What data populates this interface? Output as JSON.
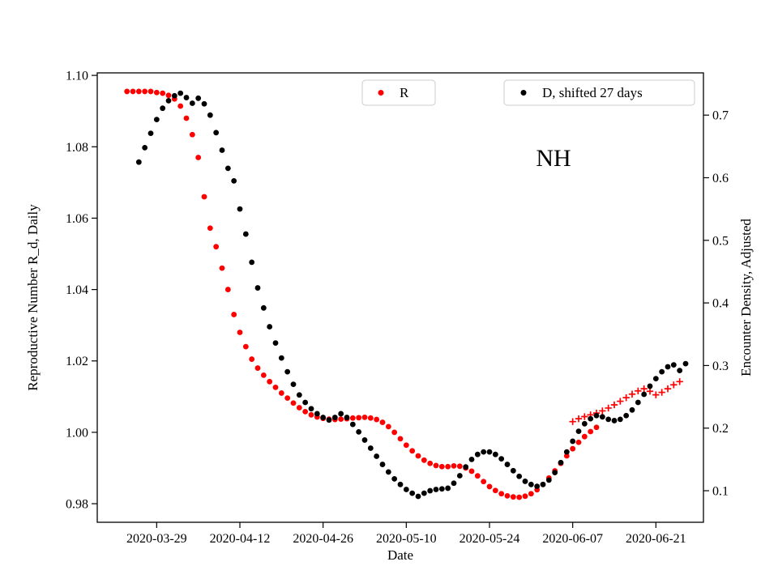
{
  "chart_data": {
    "type": "scatter",
    "title": "NH",
    "xlabel": "Date",
    "grid": false,
    "x_axis": {
      "range": [
        "2020-03-19",
        "2020-06-29"
      ],
      "tick_labels": [
        "2020-03-29",
        "2020-04-12",
        "2020-04-26",
        "2020-05-10",
        "2020-05-24",
        "2020-06-07",
        "2020-06-21"
      ]
    },
    "left_axis": {
      "label": "Reproductive Number R_d, Daily",
      "color": "#ff0000",
      "range": [
        0.9748,
        1.1007
      ],
      "tick_values": [
        0.98,
        1.0,
        1.02,
        1.04,
        1.06,
        1.08,
        1.1
      ],
      "tick_labels": [
        "0.98",
        "1.00",
        "1.02",
        "1.04",
        "1.06",
        "1.08",
        "1.10"
      ]
    },
    "right_axis": {
      "label": "Encounter Density, Adjusted",
      "color": "#000000",
      "range": [
        0.0496,
        0.7675
      ],
      "tick_values": [
        0.1,
        0.2,
        0.3,
        0.4,
        0.5,
        0.6,
        0.7
      ],
      "tick_labels": [
        "0.1",
        "0.2",
        "0.3",
        "0.4",
        "0.5",
        "0.6",
        "0.7"
      ]
    },
    "legend": [
      {
        "label": "R",
        "marker": "circle",
        "color": "#ff0000"
      },
      {
        "label": "D, shifted 27 days",
        "marker": "circle",
        "color": "#000000"
      }
    ],
    "series": [
      {
        "name": "R",
        "axis": "left",
        "marker": "circle",
        "color": "#ff0000",
        "start_date": "2020-03-24",
        "cadence_days": 1,
        "values": [
          1.0955,
          1.0955,
          1.0955,
          1.0955,
          1.0955,
          1.0952,
          1.095,
          1.0944,
          1.0934,
          1.0914,
          1.088,
          1.0834,
          1.077,
          1.066,
          1.0572,
          1.052,
          1.046,
          1.04,
          1.033,
          1.028,
          1.024,
          1.0205,
          1.018,
          1.016,
          1.0142,
          1.0126,
          1.011,
          1.0096,
          1.0082,
          1.0069,
          1.0058,
          1.0049,
          1.0043,
          1.0039,
          1.0037,
          1.0036,
          1.0037,
          1.0038,
          1.004,
          1.0041,
          1.0042,
          1.004,
          1.0036,
          1.0028,
          1.0016,
          1.0,
          0.9982,
          0.9964,
          0.9948,
          0.9934,
          0.9922,
          0.9913,
          0.9907,
          0.9904,
          0.9904,
          0.9906,
          0.9905,
          0.99,
          0.9891,
          0.9878,
          0.9862,
          0.9848,
          0.9837,
          0.9828,
          0.9822,
          0.9819,
          0.9818,
          0.9821,
          0.9828,
          0.9839,
          0.9854,
          0.9872,
          0.9892,
          0.9913,
          0.9934,
          0.9954,
          0.9972,
          0.9988,
          1.0002,
          1.0014
        ]
      },
      {
        "name": "R",
        "axis": "left",
        "marker": "plus",
        "color": "#ff0000",
        "start_date": "2020-06-07",
        "cadence_days": 1,
        "values": [
          1.003,
          1.0038,
          1.0044,
          1.0049,
          1.0054,
          1.006,
          1.0068,
          1.0077,
          1.0087,
          1.0097,
          1.0107,
          1.0116,
          1.0122,
          1.0115,
          1.0105,
          1.0112,
          1.0122,
          1.0133,
          1.0142
        ]
      },
      {
        "name": "D, shifted 27 days",
        "axis": "right",
        "marker": "circle",
        "color": "#000000",
        "start_date": "2020-03-26",
        "cadence_days": 1,
        "values": [
          0.625,
          0.648,
          0.671,
          0.693,
          0.711,
          0.723,
          0.731,
          0.735,
          0.728,
          0.719,
          0.727,
          0.718,
          0.7,
          0.672,
          0.644,
          0.615,
          0.595,
          0.55,
          0.51,
          0.465,
          0.424,
          0.392,
          0.362,
          0.336,
          0.312,
          0.29,
          0.27,
          0.253,
          0.241,
          0.231,
          0.223,
          0.217,
          0.213,
          0.217,
          0.223,
          0.217,
          0.206,
          0.194,
          0.181,
          0.168,
          0.155,
          0.142,
          0.13,
          0.119,
          0.11,
          0.102,
          0.096,
          0.091,
          0.096,
          0.1,
          0.102,
          0.103,
          0.104,
          0.112,
          0.124,
          0.138,
          0.15,
          0.158,
          0.162,
          0.162,
          0.158,
          0.151,
          0.142,
          0.132,
          0.123,
          0.115,
          0.11,
          0.107,
          0.11,
          0.117,
          0.129,
          0.145,
          0.162,
          0.179,
          0.195,
          0.207,
          0.215,
          0.22,
          0.218,
          0.214,
          0.212,
          0.214,
          0.22,
          0.229,
          0.241,
          0.254,
          0.267,
          0.279,
          0.29,
          0.298,
          0.301,
          0.292,
          0.303
        ]
      }
    ]
  }
}
